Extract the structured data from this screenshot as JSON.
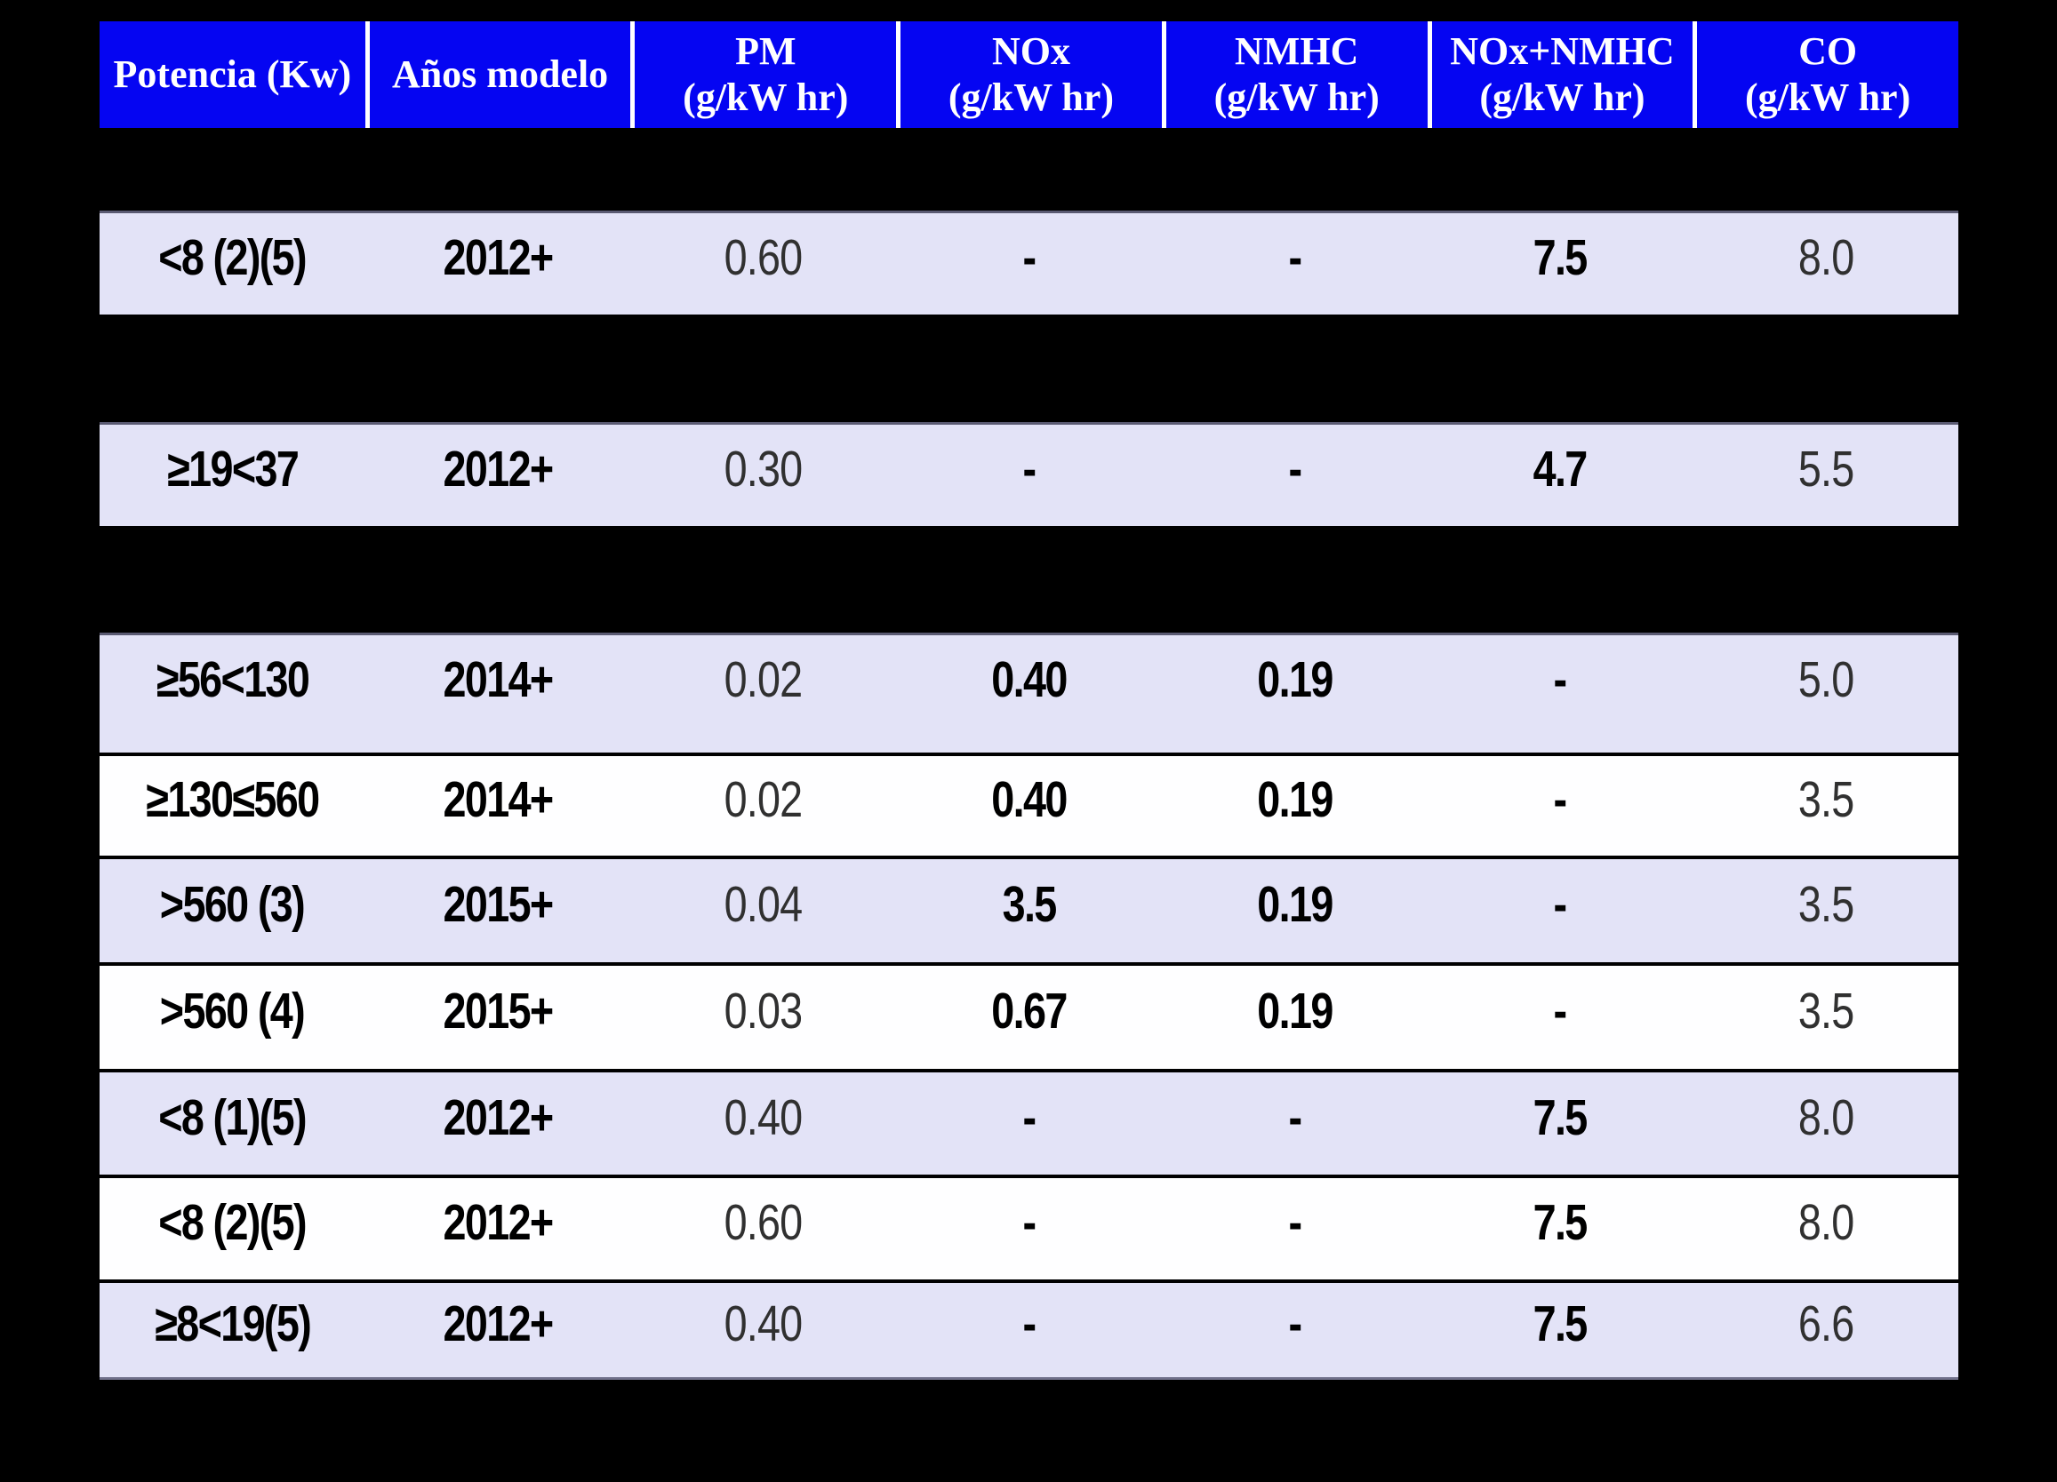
{
  "chart_data": {
    "type": "table",
    "columns": [
      {
        "name": "Potencia (Kw)",
        "unit": ""
      },
      {
        "name": "Años modelo",
        "unit": ""
      },
      {
        "name": "PM",
        "unit": "(g/kW hr)"
      },
      {
        "name": "NOx",
        "unit": "(g/kW hr)"
      },
      {
        "name": "NMHC",
        "unit": "(g/kW hr)"
      },
      {
        "name": "NOx+NMHC",
        "unit": "(g/kW hr)"
      },
      {
        "name": "CO",
        "unit": "(g/kW hr)"
      }
    ],
    "rows": [
      {
        "cells": [
          "<8 (2)(5)",
          "2012+",
          "0.60",
          "-",
          "-",
          "7.5",
          "8.0"
        ]
      },
      {
        "cells": [
          "≥19<37",
          "2012+",
          "0.30",
          "-",
          "-",
          "4.7",
          "5.5"
        ]
      },
      {
        "cells": [
          "≥56<130",
          "2014+",
          "0.02",
          "0.40",
          "0.19",
          "-",
          "5.0"
        ]
      },
      {
        "cells": [
          "≥130≤560",
          "2014+",
          "0.02",
          "0.40",
          "0.19",
          "-",
          "3.5"
        ]
      },
      {
        "cells": [
          ">560 (3)",
          "2015+",
          "0.04",
          "3.5",
          "0.19",
          "-",
          "3.5"
        ]
      },
      {
        "cells": [
          ">560 (4)",
          "2015+",
          "0.03",
          "0.67",
          "0.19",
          "-",
          "3.5"
        ]
      },
      {
        "cells": [
          "<8 (1)(5)",
          "2012+",
          "0.40",
          "-",
          "-",
          "7.5",
          "8.0"
        ]
      },
      {
        "cells": [
          "<8 (2)(5)",
          "2012+",
          "0.60",
          "-",
          "-",
          "7.5",
          "8.0"
        ]
      },
      {
        "cells": [
          "≥8<19(5)",
          "2012+",
          "0.40",
          "-",
          "-",
          "7.5",
          "6.6"
        ]
      }
    ],
    "layout": {
      "header_position": "top",
      "grid": "black-row-separators-with-black-section-gaps",
      "light_value_columns": [
        "PM",
        "CO"
      ],
      "bold_value_columns": [
        "Potencia (Kw)",
        "Años modelo",
        "NOx",
        "NMHC",
        "NOx+NMHC"
      ]
    }
  },
  "colors": {
    "page_bg": "#000000",
    "header_bg": "#0505f2",
    "header_text": "#ffffff",
    "row_lavender": "#e3e3f7",
    "row_white": "#fefeff",
    "text_bold": "#000000",
    "text_light": "#303030"
  }
}
